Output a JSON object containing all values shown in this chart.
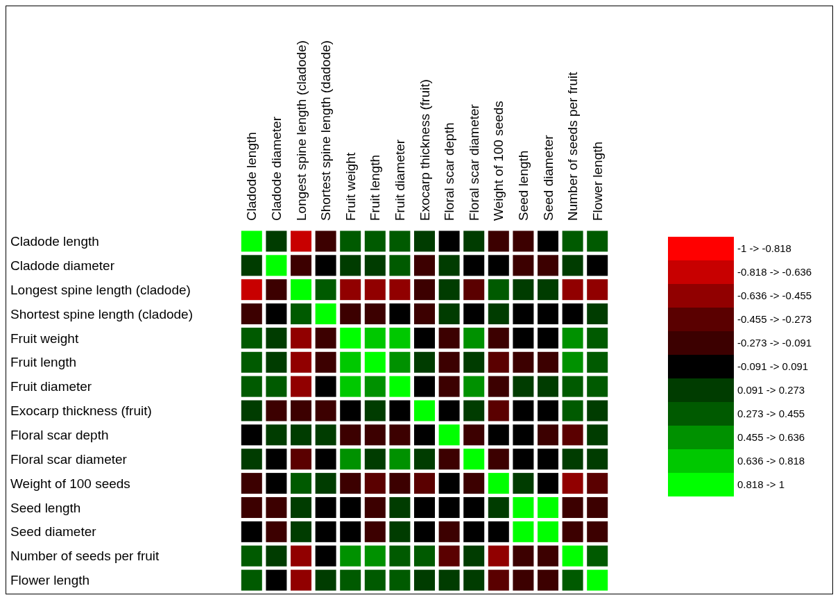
{
  "chart_data": {
    "type": "heatmap",
    "categories": [
      "Cladode length",
      "Cladode diameter",
      "Longest spine length (cladode)",
      "Shortest spine length (dadode)",
      "Fruit weight",
      "Fruit length",
      "Fruit diameter",
      "Exocarp thickness (fruit)",
      "Floral scar depth",
      "Floral scar diameter",
      "Weight of 100 seeds",
      "Seed length",
      "Seed diameter",
      "Number of seeds per fruit",
      "Flower length"
    ],
    "y_categories": [
      "Cladode length",
      "Cladode diameter",
      "Longest spine length (cladode)",
      "Shortest spine length (cladode)",
      "Fruit weight",
      "Fruit length",
      "Fruit diameter",
      "Exocarp thickness (fruit)",
      "Floral scar depth",
      "Floral scar diameter",
      "Weight of 100 seeds",
      "Seed length",
      "Seed diameter",
      "Number of seeds per fruit",
      "Flower length"
    ],
    "cells": [
      [
        1,
        0.182,
        -0.727,
        -0.182,
        0.364,
        0.364,
        0.364,
        0.182,
        0,
        0.182,
        -0.182,
        -0.182,
        0,
        0.364,
        0.364
      ],
      [
        0.182,
        1,
        -0.182,
        0,
        0.182,
        0.182,
        0.364,
        -0.182,
        0.182,
        0,
        0,
        -0.182,
        -0.182,
        0.182,
        0
      ],
      [
        -0.727,
        -0.182,
        1,
        0.364,
        -0.545,
        -0.545,
        -0.545,
        -0.182,
        0.182,
        -0.364,
        0.364,
        0.182,
        0.182,
        -0.545,
        -0.545
      ],
      [
        -0.182,
        0,
        0.364,
        1,
        -0.182,
        -0.182,
        0,
        -0.182,
        0.182,
        0,
        0.182,
        0,
        0,
        0,
        0.182
      ],
      [
        0.364,
        0.182,
        -0.545,
        -0.182,
        1,
        0.727,
        0.727,
        0,
        -0.182,
        0.545,
        -0.182,
        0,
        0,
        0.545,
        0.364
      ],
      [
        0.364,
        0.182,
        -0.545,
        -0.182,
        0.727,
        1,
        0.545,
        0.182,
        -0.182,
        0.182,
        -0.364,
        -0.182,
        -0.182,
        0.545,
        0.364
      ],
      [
        0.364,
        0.364,
        -0.545,
        0,
        0.727,
        0.545,
        1,
        0,
        -0.182,
        0.545,
        -0.182,
        0.182,
        0.182,
        0.364,
        0.364
      ],
      [
        0.182,
        -0.182,
        -0.182,
        -0.182,
        0,
        0.182,
        0,
        1,
        0,
        0.182,
        -0.364,
        0,
        0,
        0.364,
        0.182
      ],
      [
        0,
        0.182,
        0.182,
        0.182,
        -0.182,
        -0.182,
        -0.182,
        0,
        1,
        -0.182,
        0,
        0,
        -0.182,
        -0.364,
        0.182
      ],
      [
        0.182,
        0,
        -0.364,
        0,
        0.545,
        0.182,
        0.545,
        0.182,
        -0.182,
        1,
        -0.182,
        0,
        0,
        0.182,
        0.182
      ],
      [
        -0.182,
        0,
        0.364,
        0.182,
        -0.182,
        -0.364,
        -0.182,
        -0.364,
        0,
        -0.182,
        1,
        0.182,
        0,
        -0.545,
        -0.364
      ],
      [
        -0.182,
        -0.182,
        0.182,
        0,
        0,
        -0.182,
        0.182,
        0,
        0,
        0,
        0.182,
        1,
        0.909,
        -0.182,
        -0.182
      ],
      [
        0,
        -0.182,
        0.182,
        0,
        0,
        -0.182,
        0.182,
        0,
        -0.182,
        0,
        0,
        0.909,
        1,
        -0.182,
        -0.182
      ],
      [
        0.364,
        0.182,
        -0.545,
        0,
        0.545,
        0.545,
        0.364,
        0.364,
        -0.364,
        0.182,
        -0.545,
        -0.182,
        -0.182,
        1,
        0.364
      ],
      [
        0.364,
        0,
        -0.545,
        0.182,
        0.364,
        0.364,
        0.364,
        0.182,
        0.182,
        0.182,
        -0.364,
        -0.182,
        -0.182,
        0.364,
        1
      ]
    ],
    "clim": [
      -1,
      1
    ],
    "cticks": [
      {
        "value": -0.909,
        "label": "-1 -> -0.818"
      },
      {
        "value": -0.727,
        "label": "-0.818 -> -0.636"
      },
      {
        "value": -0.545,
        "label": "-0.636 -> -0.455"
      },
      {
        "value": -0.364,
        "label": "-0.455 -> -0.273"
      },
      {
        "value": -0.182,
        "label": "-0.273 -> -0.091"
      },
      {
        "value": 0,
        "label": "-0.091 -> 0.091"
      },
      {
        "value": 0.182,
        "label": "0.091 -> 0.273"
      },
      {
        "value": 0.364,
        "label": "0.273 -> 0.455"
      },
      {
        "value": 0.545,
        "label": "0.455 -> 0.636"
      },
      {
        "value": 0.727,
        "label": "0.636 -> 0.818"
      },
      {
        "value": 0.909,
        "label": "0.818 -> 1"
      }
    ],
    "colors": [
      "#ff0000",
      "#c80000",
      "#910000",
      "#5a0000",
      "#3c0000",
      "#000000",
      "#003c00",
      "#005a00",
      "#009100",
      "#00c800",
      "#00ff00"
    ]
  }
}
